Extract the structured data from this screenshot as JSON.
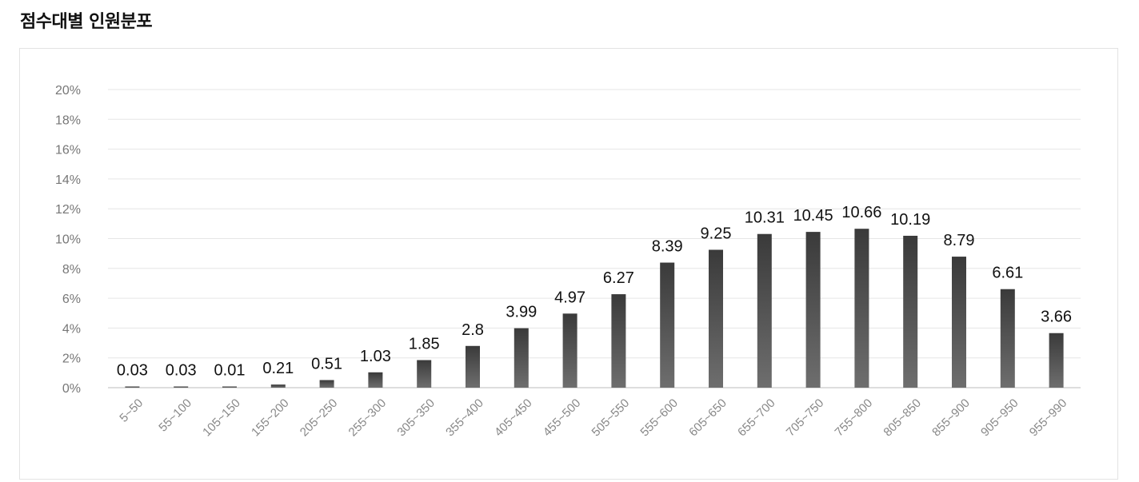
{
  "page": {
    "title": "점수대별 인원분포"
  },
  "colors": {
    "bar_top": "#3a3a3a",
    "bar_bottom": "#6e6e6e",
    "grid": "#e6e6e6",
    "baseline": "#bdbdbd"
  },
  "chart_data": {
    "type": "bar",
    "title": "",
    "xlabel": "",
    "ylabel": "",
    "ylim": [
      0,
      20
    ],
    "y_ticks": [
      0,
      2,
      4,
      6,
      8,
      10,
      12,
      14,
      16,
      18,
      20
    ],
    "y_tick_labels": [
      "0%",
      "2%",
      "4%",
      "6%",
      "8%",
      "10%",
      "12%",
      "14%",
      "16%",
      "18%",
      "20%"
    ],
    "grid": true,
    "legend": "none",
    "categories": [
      "5~50",
      "55~100",
      "105~150",
      "155~200",
      "205~250",
      "255~300",
      "305~350",
      "355~400",
      "405~450",
      "455~500",
      "505~550",
      "555~600",
      "605~650",
      "655~700",
      "705~750",
      "755~800",
      "805~850",
      "855~900",
      "905~950",
      "955~990"
    ],
    "values": [
      0.03,
      0.03,
      0.01,
      0.21,
      0.51,
      1.03,
      1.85,
      2.8,
      3.99,
      4.97,
      6.27,
      8.39,
      9.25,
      10.31,
      10.45,
      10.66,
      10.19,
      8.79,
      6.61,
      3.66
    ],
    "value_labels": [
      "0.03",
      "0.03",
      "0.01",
      "0.21",
      "0.51",
      "1.03",
      "1.85",
      "2.8",
      "3.99",
      "4.97",
      "6.27",
      "8.39",
      "9.25",
      "10.31",
      "10.45",
      "10.66",
      "10.19",
      "8.79",
      "6.61",
      "3.66"
    ]
  }
}
